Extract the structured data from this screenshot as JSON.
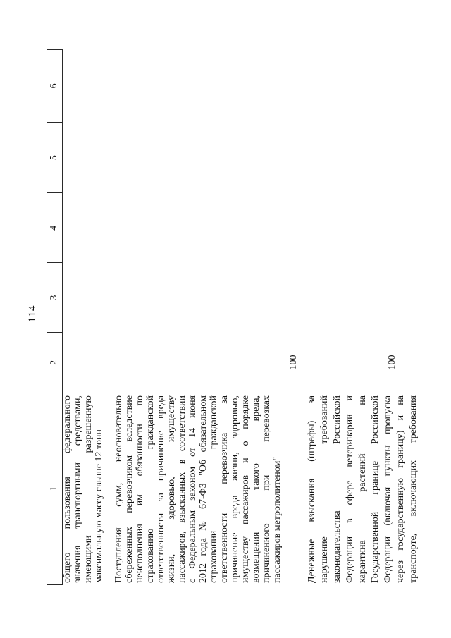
{
  "page": {
    "number": "114"
  },
  "table": {
    "header_cells": [
      "1",
      "2",
      "3",
      "4",
      "5",
      "6"
    ],
    "rows": [
      {
        "description_lines": [
          "общего пользования федерального",
          "значения транспортными средствами,",
          "имеющими разрешенную",
          "максимальную массу свыше 12 тонн"
        ],
        "value": ""
      },
      {
        "description_lines": [
          "Поступления сумм, неосновательно",
          "сбереженных перевозчиком вследствие",
          "неисполнения им обязанности по",
          "страхованию гражданской",
          "ответственности за причинение вреда",
          "жизни, здоровью, имуществу",
          "пассажиров, взысканных в соответствии",
          "с Федеральным законом от 14 июня",
          "2012 года № 67-ФЗ \"Об обязательном",
          "страховании гражданской",
          "ответственности перевозчика за",
          "причинение вреда жизни, здоровью,",
          "имуществу пассажиров и о порядке",
          "возмещения такого вреда,",
          "причиненного при перевозках",
          "пассажиров метрополитеном\""
        ],
        "value": "100"
      },
      {
        "description_lines": [
          "Денежные взыскания (штрафы) за",
          "нарушение требований",
          "законодательства Российской",
          "Федерации в сфере ветеринарии и",
          "карантина растений на",
          "Государственной границе Российской",
          "Федерации (включая пункты пропуска",
          "через государственную границу) и на",
          "транспорте, включающих требования"
        ],
        "value": "100"
      }
    ]
  }
}
